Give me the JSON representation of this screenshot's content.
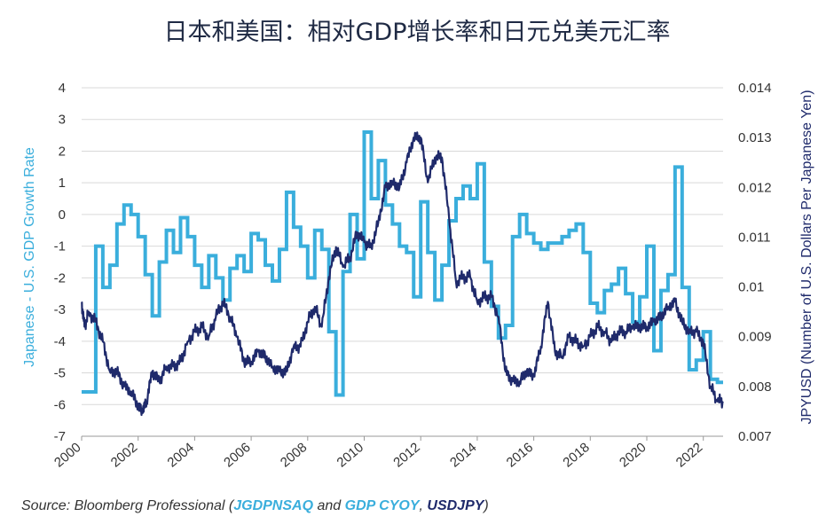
{
  "chart_data": {
    "type": "line",
    "title": "日本和美国：相对GDP增长率和日元兑美元汇率",
    "y_left": {
      "label": "Japanese - U.S. GDP Growth Rate",
      "lim": [
        -7,
        4
      ],
      "ticks": [
        4,
        3,
        2,
        1,
        0,
        -1,
        -2,
        -3,
        -4,
        -5,
        -6,
        -7
      ]
    },
    "y_right": {
      "label": "JPYUSD (Number of U.S. Dollars Per Japanese Yen)",
      "lim": [
        0.007,
        0.014
      ],
      "ticks": [
        "0.014",
        "0.013",
        "0.012",
        "0.011",
        "0.01",
        "0.009",
        "0.008",
        "0.007"
      ]
    },
    "x_axis": {
      "lim": [
        2000.0,
        2022.7
      ],
      "ticks": [
        "2000",
        "2002",
        "2004",
        "2006",
        "2008",
        "2010",
        "2012",
        "2014",
        "2016",
        "2018",
        "2020",
        "2022"
      ]
    },
    "grid": true,
    "colors": {
      "gdp": "#3aaedc",
      "jpyusd": "#1f2a6b",
      "grid": "#d9d9d9"
    },
    "series": [
      {
        "axis": "left",
        "step": true,
        "x": [
          2000.0,
          2000.25,
          2000.5,
          2000.75,
          2001.0,
          2001.25,
          2001.5,
          2001.75,
          2002.0,
          2002.25,
          2002.5,
          2002.75,
          2003.0,
          2003.25,
          2003.5,
          2003.75,
          2004.0,
          2004.25,
          2004.5,
          2004.75,
          2005.0,
          2005.25,
          2005.5,
          2005.75,
          2006.0,
          2006.25,
          2006.5,
          2006.75,
          2007.0,
          2007.25,
          2007.5,
          2007.75,
          2008.0,
          2008.25,
          2008.5,
          2008.75,
          2009.0,
          2009.25,
          2009.5,
          2009.75,
          2010.0,
          2010.25,
          2010.5,
          2010.75,
          2011.0,
          2011.25,
          2011.5,
          2011.75,
          2012.0,
          2012.25,
          2012.5,
          2012.75,
          2013.0,
          2013.25,
          2013.5,
          2013.75,
          2014.0,
          2014.25,
          2014.5,
          2014.75,
          2015.0,
          2015.25,
          2015.5,
          2015.75,
          2016.0,
          2016.25,
          2016.5,
          2016.75,
          2017.0,
          2017.25,
          2017.5,
          2017.75,
          2018.0,
          2018.25,
          2018.5,
          2018.75,
          2019.0,
          2019.25,
          2019.5,
          2019.75,
          2020.0,
          2020.25,
          2020.5,
          2020.75,
          2021.0,
          2021.25,
          2021.5,
          2021.75,
          2022.0,
          2022.25,
          2022.5,
          2022.7
        ],
        "values": [
          -5.6,
          -5.6,
          -1.0,
          -2.3,
          -1.6,
          -0.3,
          0.3,
          0.0,
          -0.7,
          -1.9,
          -3.2,
          -1.5,
          -0.5,
          -1.2,
          -0.1,
          -0.7,
          -1.6,
          -2.3,
          -1.3,
          -2.0,
          -2.7,
          -1.7,
          -1.3,
          -1.8,
          -0.6,
          -0.8,
          -1.6,
          -2.1,
          -1.1,
          0.7,
          -0.4,
          -1.0,
          -2.0,
          -0.5,
          -1.1,
          -3.7,
          -5.7,
          -1.8,
          0.0,
          -1.4,
          2.6,
          0.5,
          1.7,
          0.3,
          -0.3,
          -1.0,
          -1.2,
          -2.6,
          0.4,
          -1.2,
          -2.7,
          -1.6,
          -0.2,
          0.5,
          0.9,
          0.5,
          1.6,
          -1.5,
          -2.9,
          -3.9,
          -3.5,
          -0.7,
          0.0,
          -0.6,
          -0.9,
          -1.1,
          -0.9,
          -0.9,
          -0.7,
          -0.5,
          -0.3,
          -1.2,
          -2.8,
          -3.1,
          -2.4,
          -2.2,
          -1.7,
          -2.5,
          -3.4,
          -2.6,
          -1.0,
          -4.3,
          -2.4,
          -1.9,
          1.5,
          -2.3,
          -4.9,
          -4.6,
          -3.7,
          -5.2,
          -5.3,
          -5.3
        ]
      },
      {
        "axis": "right",
        "step": false,
        "x": [
          2000.0,
          2000.1,
          2000.25,
          2000.5,
          2000.75,
          2001.0,
          2001.25,
          2001.5,
          2001.75,
          2002.0,
          2002.15,
          2002.3,
          2002.5,
          2002.75,
          2003.0,
          2003.25,
          2003.5,
          2003.75,
          2004.0,
          2004.25,
          2004.5,
          2004.75,
          2005.0,
          2005.25,
          2005.5,
          2005.75,
          2006.0,
          2006.25,
          2006.5,
          2006.75,
          2007.0,
          2007.25,
          2007.5,
          2007.75,
          2008.0,
          2008.25,
          2008.5,
          2008.75,
          2009.0,
          2009.25,
          2009.5,
          2009.75,
          2010.0,
          2010.25,
          2010.5,
          2010.75,
          2011.0,
          2011.25,
          2011.5,
          2011.75,
          2012.0,
          2012.25,
          2012.5,
          2012.75,
          2013.0,
          2013.25,
          2013.5,
          2013.75,
          2014.0,
          2014.25,
          2014.5,
          2014.75,
          2015.0,
          2015.25,
          2015.5,
          2015.75,
          2016.0,
          2016.25,
          2016.5,
          2016.75,
          2017.0,
          2017.25,
          2017.5,
          2017.75,
          2018.0,
          2018.25,
          2018.5,
          2018.75,
          2019.0,
          2019.25,
          2019.5,
          2019.75,
          2020.0,
          2020.25,
          2020.5,
          2020.75,
          2021.0,
          2021.25,
          2021.5,
          2021.75,
          2022.0,
          2022.25,
          2022.5,
          2022.7
        ],
        "values": [
          0.0097,
          0.0092,
          0.0095,
          0.0093,
          0.0089,
          0.0083,
          0.0083,
          0.008,
          0.0079,
          0.0076,
          0.0075,
          0.0077,
          0.0083,
          0.0081,
          0.0084,
          0.0084,
          0.0085,
          0.0089,
          0.0091,
          0.0092,
          0.009,
          0.0094,
          0.0097,
          0.0094,
          0.009,
          0.0085,
          0.0085,
          0.0087,
          0.0086,
          0.0084,
          0.0083,
          0.0083,
          0.0088,
          0.0088,
          0.0093,
          0.0096,
          0.0092,
          0.0102,
          0.0108,
          0.0104,
          0.0106,
          0.0111,
          0.0109,
          0.0108,
          0.0113,
          0.012,
          0.0121,
          0.012,
          0.0125,
          0.013,
          0.013,
          0.0121,
          0.0126,
          0.0126,
          0.0114,
          0.0101,
          0.0102,
          0.0102,
          0.0097,
          0.0098,
          0.0098,
          0.0094,
          0.0083,
          0.0081,
          0.0081,
          0.0083,
          0.0082,
          0.0088,
          0.0097,
          0.0087,
          0.0086,
          0.009,
          0.0089,
          0.0088,
          0.009,
          0.0092,
          0.0091,
          0.0089,
          0.0091,
          0.0091,
          0.0092,
          0.0092,
          0.0092,
          0.0093,
          0.0094,
          0.0096,
          0.0097,
          0.0093,
          0.0091,
          0.0091,
          0.0089,
          0.008,
          0.0077,
          0.0077
        ]
      }
    ]
  },
  "source": {
    "prefix": "Source: Bloomberg Professional (",
    "code1": "JGDPNSAQ",
    "and": " and ",
    "code2": "GDP CYOY",
    "comma": ", ",
    "code3": "USDJPY",
    "suffix": ")"
  }
}
